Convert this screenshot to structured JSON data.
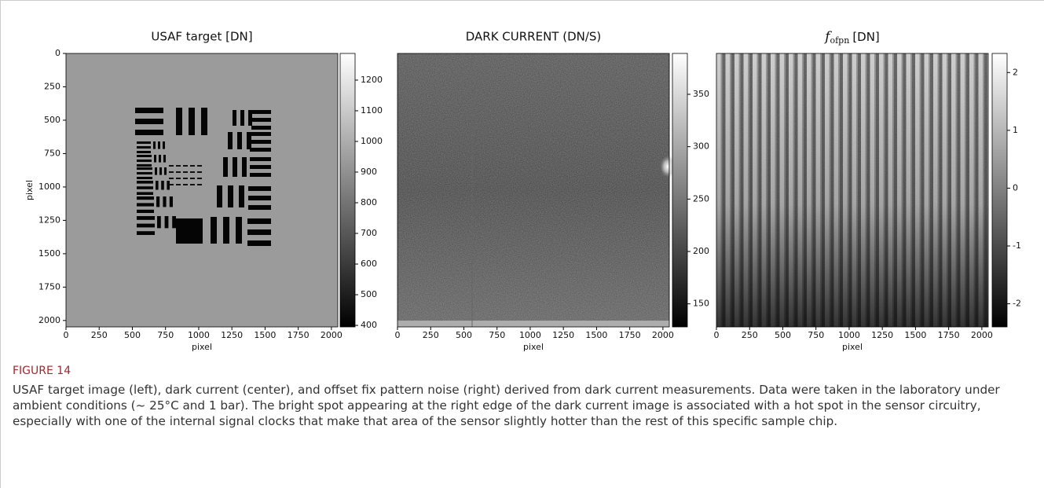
{
  "chart_data": [
    {
      "type": "image",
      "title": "USAF target [DN]",
      "xlabel": "pixel",
      "ylabel": "pixel",
      "xlim": [
        0,
        2048
      ],
      "ylim": [
        0,
        2048
      ],
      "xticks": [
        0,
        250,
        500,
        750,
        1000,
        1250,
        1500,
        1750,
        2000
      ],
      "yticks": [
        0,
        250,
        500,
        750,
        1000,
        1250,
        1500,
        1750,
        2000
      ],
      "colorbar_lim": [
        395,
        1287
      ],
      "colorbar_ticks": [
        400,
        500,
        600,
        700,
        800,
        900,
        1000,
        1100,
        1200
      ]
    },
    {
      "type": "image",
      "title": "DARK CURRENT (DN/S)",
      "xlabel": "pixel",
      "xlim": [
        0,
        2048
      ],
      "ylim": [
        0,
        2048
      ],
      "xticks": [
        0,
        250,
        500,
        750,
        1000,
        1250,
        1500,
        1750,
        2000
      ],
      "colorbar_lim": [
        128,
        389
      ],
      "colorbar_ticks": [
        150,
        200,
        250,
        300,
        350
      ]
    },
    {
      "type": "image",
      "title_symbol": "f",
      "title_subscript": "ofpn",
      "title": "[DN]",
      "xlabel": "pixel",
      "xlim": [
        0,
        2048
      ],
      "ylim": [
        0,
        2048
      ],
      "xticks": [
        0,
        250,
        500,
        750,
        1000,
        1250,
        1500,
        1750,
        2000
      ],
      "colorbar_lim": [
        -2.4,
        2.33
      ],
      "colorbar_ticks": [
        -2,
        -1,
        0,
        1,
        2
      ]
    }
  ],
  "figure_label": "FIGURE 14",
  "caption": "USAF target image (left), dark current (center), and offset fix pattern noise (right) derived from dark current measurements. Data were taken in the laboratory under ambient conditions (~ 25°C and 1 bar). The bright spot appearing at the right edge of the dark current image is associated with a hot spot in the sensor circuitry, especially with one of the internal signal clocks that make that area of the sensor slightly hotter than the rest of this specific sample chip."
}
